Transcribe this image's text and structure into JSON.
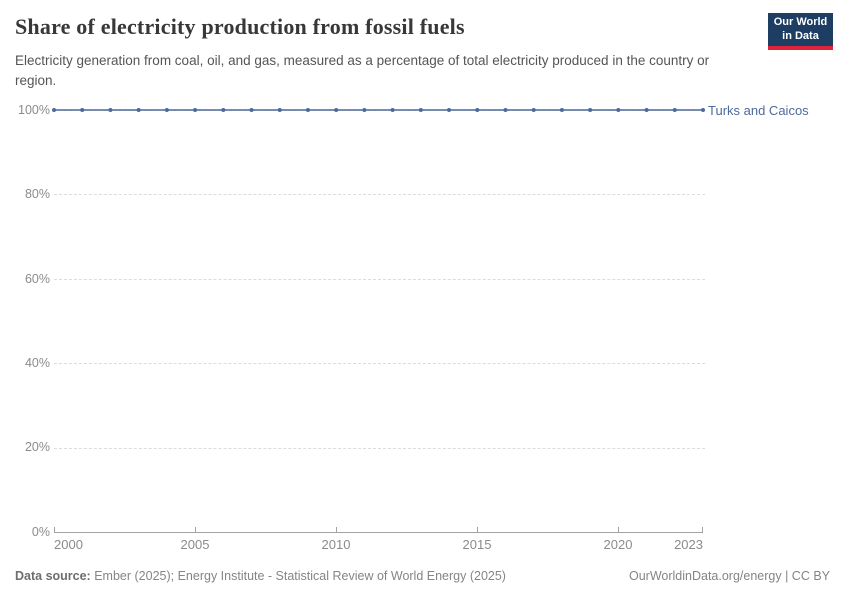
{
  "header": {
    "title": "Share of electricity production from fossil fuels",
    "subtitle": "Electricity generation from coal, oil, and gas, measured as a percentage of total electricity produced in the country or region.",
    "logo": {
      "line1": "Our World",
      "line2": "in Data"
    }
  },
  "chart": {
    "entity_label": "Turks and Caicos",
    "y_ticks": [
      "100%",
      "80%",
      "60%",
      "40%",
      "20%",
      "0%"
    ],
    "x_ticks": [
      "2000",
      "2005",
      "2010",
      "2015",
      "2020",
      "2023"
    ]
  },
  "chart_data": {
    "type": "line",
    "title": "Share of electricity production from fossil fuels",
    "xlabel": "",
    "ylabel": "",
    "xlim": [
      2000,
      2023
    ],
    "ylim": [
      0,
      100
    ],
    "grid": true,
    "grid_style": "dashed-horizontal",
    "legend_position": "end-of-line-label",
    "series": [
      {
        "name": "Turks and Caicos",
        "x": [
          2000,
          2001,
          2002,
          2003,
          2004,
          2005,
          2006,
          2007,
          2008,
          2009,
          2010,
          2011,
          2012,
          2013,
          2014,
          2015,
          2016,
          2017,
          2018,
          2019,
          2020,
          2021,
          2022,
          2023
        ],
        "values": [
          100,
          100,
          100,
          100,
          100,
          100,
          100,
          100,
          100,
          100,
          100,
          100,
          100,
          100,
          100,
          100,
          100,
          100,
          100,
          100,
          100,
          100,
          100,
          100
        ]
      }
    ]
  },
  "footer": {
    "source_label": "Data source:",
    "source_text": "Ember (2025); Energy Institute - Statistical Review of World Energy (2025)",
    "note": "OurWorldinData.org/energy | CC BY"
  },
  "colors": {
    "line": "#4c6a9c",
    "marker": "#4c6a9c",
    "entity_label": "#4c6a9c",
    "logo_background": "#1d3d63",
    "logo_stripe": "#e0233a",
    "gridline": "#dcdcdc",
    "axis": "#a3a3a3"
  }
}
